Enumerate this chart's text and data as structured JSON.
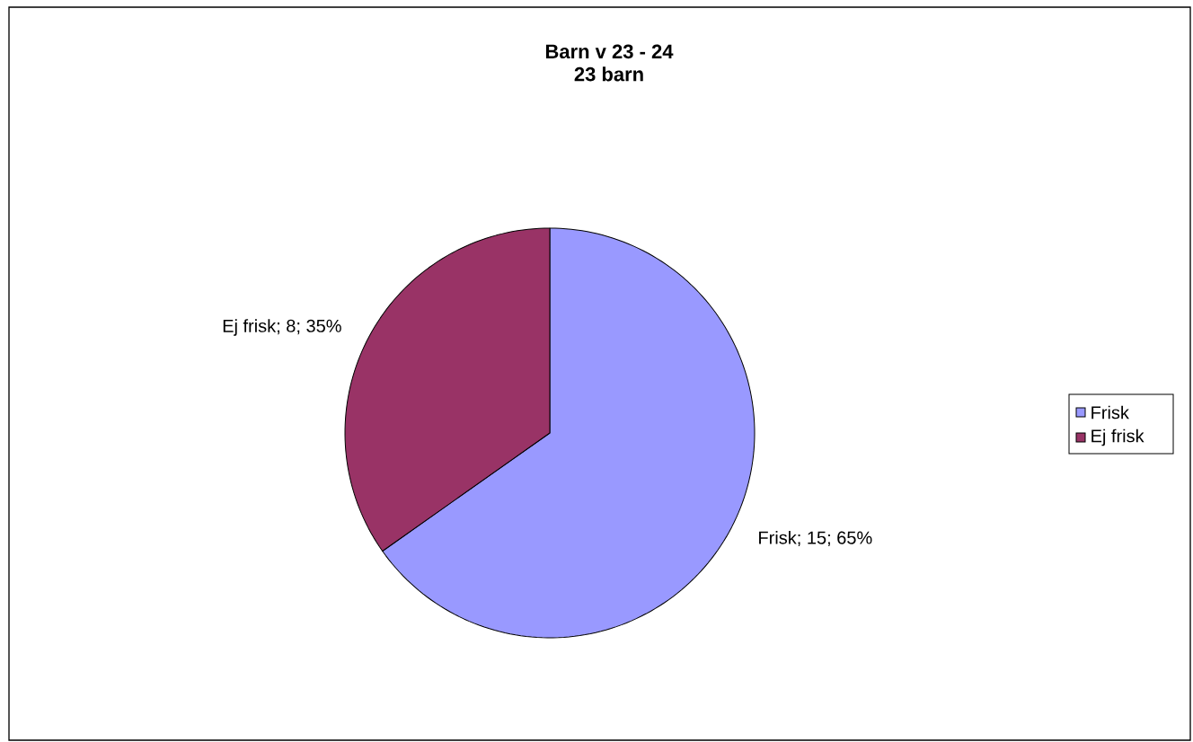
{
  "chart_data": {
    "type": "pie",
    "title": "Barn v 23 - 24",
    "subtitle": "23 barn",
    "categories": [
      "Frisk",
      "Ej frisk"
    ],
    "values": [
      15,
      8
    ],
    "colors": [
      "#9999ff",
      "#993366"
    ],
    "value_labels": [
      "Frisk; 15; 65%",
      "Ej frisk; 8; 35%"
    ],
    "legend": "right"
  }
}
